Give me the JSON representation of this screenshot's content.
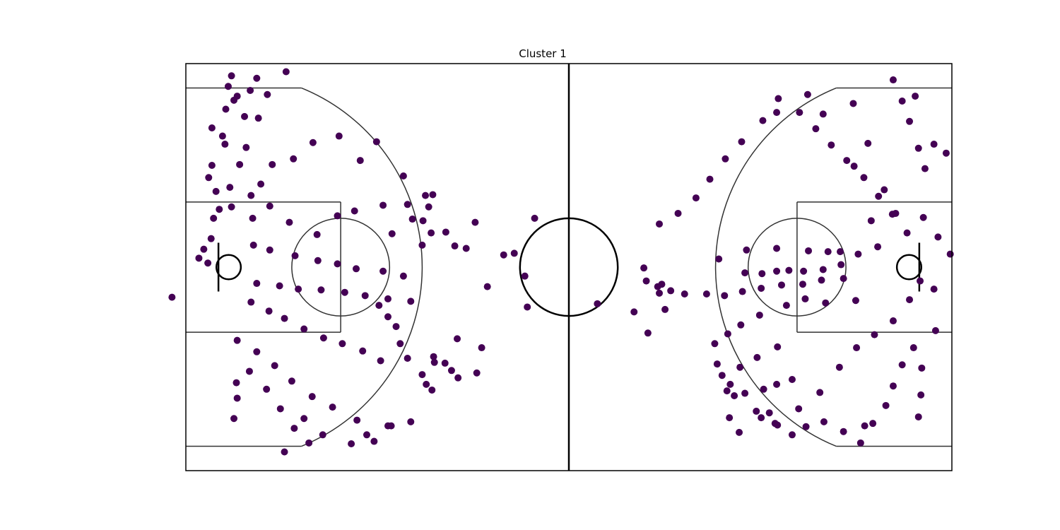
{
  "chart_data": {
    "type": "scatter",
    "title": "Cluster 1",
    "xlabel": "",
    "ylabel": "",
    "xlim": [
      0,
      94
    ],
    "ylim": [
      0,
      50
    ],
    "grid": false,
    "axes_ticks": false,
    "point_color": "#440154",
    "line_color": "#333333",
    "court": {
      "length_ft": 94,
      "width_ft": 50,
      "center_circle_radius_ft": 6,
      "three_point_radius_ft": 23.75,
      "corner_three_ft": 22,
      "lane_width_ft": 16,
      "lane_length_ft": 19,
      "free_throw_circle_radius_ft": 6,
      "rim_x_ft": 5.25
    },
    "shot_points": [
      [
        -1.7,
        21.3
      ],
      [
        41.9,
        20.1
      ],
      [
        50.5,
        20.5
      ],
      [
        37.0,
        22.6
      ],
      [
        39.0,
        26.5
      ],
      [
        42.8,
        31.0
      ],
      [
        40.3,
        26.7
      ],
      [
        41.6,
        23.9
      ],
      [
        5.6,
        32.4
      ],
      [
        8.2,
        31.0
      ],
      [
        10.3,
        32.5
      ],
      [
        12.7,
        30.5
      ],
      [
        16.1,
        29.0
      ],
      [
        18.6,
        31.3
      ],
      [
        20.7,
        31.9
      ],
      [
        24.2,
        32.6
      ],
      [
        7.4,
        39.7
      ],
      [
        8.9,
        43.3
      ],
      [
        10.0,
        46.2
      ],
      [
        12.3,
        49.0
      ],
      [
        7.2,
        43.5
      ],
      [
        4.8,
        40.1
      ],
      [
        3.2,
        42.1
      ],
      [
        5.9,
        45.5
      ],
      [
        6.3,
        16.0
      ],
      [
        8.7,
        14.6
      ],
      [
        10.9,
        12.9
      ],
      [
        13.0,
        11.0
      ],
      [
        15.5,
        9.1
      ],
      [
        18.0,
        7.8
      ],
      [
        21.0,
        6.2
      ],
      [
        24.8,
        5.5
      ],
      [
        25.8,
        17.7
      ],
      [
        24.8,
        18.9
      ],
      [
        23.7,
        20.3
      ],
      [
        26.3,
        15.6
      ],
      [
        27.2,
        13.8
      ],
      [
        30.4,
        14.0
      ],
      [
        33.3,
        16.2
      ],
      [
        36.3,
        15.1
      ],
      [
        35.7,
        12.0
      ],
      [
        33.4,
        11.4
      ],
      [
        32.6,
        12.3
      ],
      [
        31.8,
        13.2
      ],
      [
        30.5,
        13.3
      ],
      [
        29.0,
        11.8
      ],
      [
        29.5,
        10.6
      ],
      [
        30.2,
        9.9
      ],
      [
        6.2,
        10.8
      ],
      [
        6.3,
        8.9
      ],
      [
        5.9,
        6.4
      ],
      [
        7.8,
        12.2
      ],
      [
        9.9,
        10.0
      ],
      [
        11.6,
        7.6
      ],
      [
        14.5,
        6.4
      ],
      [
        16.8,
        4.4
      ],
      [
        20.3,
        3.3
      ],
      [
        22.2,
        4.4
      ],
      [
        23.1,
        3.6
      ],
      [
        25.2,
        5.5
      ],
      [
        27.6,
        6.0
      ],
      [
        15.1,
        3.4
      ],
      [
        13.3,
        5.2
      ],
      [
        12.1,
        2.3
      ],
      [
        5.4,
        34.8
      ],
      [
        6.6,
        37.6
      ],
      [
        8.0,
        33.8
      ],
      [
        9.2,
        35.2
      ],
      [
        10.6,
        37.6
      ],
      [
        13.2,
        38.3
      ],
      [
        15.6,
        40.3
      ],
      [
        18.8,
        41.1
      ],
      [
        21.4,
        38.1
      ],
      [
        23.4,
        40.4
      ],
      [
        26.7,
        36.2
      ],
      [
        29.4,
        33.8
      ],
      [
        31.9,
        29.3
      ],
      [
        33.0,
        27.6
      ],
      [
        34.4,
        27.3
      ],
      [
        35.5,
        30.5
      ],
      [
        80.3,
        26.9
      ],
      [
        78.8,
        26.9
      ],
      [
        76.4,
        27.0
      ],
      [
        72.5,
        27.3
      ],
      [
        68.8,
        27.1
      ],
      [
        65.4,
        26.0
      ],
      [
        61.2,
        21.7
      ],
      [
        58.4,
        22.9
      ],
      [
        56.2,
        24.9
      ],
      [
        55.0,
        19.5
      ],
      [
        56.7,
        16.9
      ],
      [
        58.8,
        19.8
      ],
      [
        58.1,
        21.8
      ],
      [
        56.5,
        23.3
      ],
      [
        57.9,
        22.6
      ],
      [
        59.5,
        22.1
      ],
      [
        90.1,
        23.3
      ],
      [
        88.8,
        21.0
      ],
      [
        86.8,
        18.4
      ],
      [
        84.5,
        16.7
      ],
      [
        82.3,
        15.1
      ],
      [
        80.2,
        12.7
      ],
      [
        77.8,
        9.6
      ],
      [
        75.2,
        7.6
      ],
      [
        72.3,
        5.8
      ],
      [
        70.0,
        7.3
      ],
      [
        67.9,
        4.7
      ],
      [
        66.7,
        6.5
      ],
      [
        66.4,
        9.8
      ],
      [
        68.0,
        12.7
      ],
      [
        70.1,
        13.9
      ],
      [
        72.6,
        15.2
      ],
      [
        88.5,
        29.2
      ],
      [
        86.7,
        31.5
      ],
      [
        85.0,
        33.7
      ],
      [
        83.2,
        36.0
      ],
      [
        81.1,
        38.1
      ],
      [
        79.2,
        40.0
      ],
      [
        77.3,
        42.0
      ],
      [
        75.3,
        44.0
      ],
      [
        72.7,
        45.7
      ],
      [
        70.8,
        43.0
      ],
      [
        68.2,
        40.4
      ],
      [
        66.2,
        38.3
      ],
      [
        64.3,
        35.8
      ],
      [
        62.6,
        33.5
      ],
      [
        60.4,
        31.6
      ],
      [
        58.1,
        30.3
      ],
      [
        90.7,
        37.1
      ],
      [
        89.9,
        39.6
      ],
      [
        88.8,
        42.9
      ],
      [
        87.9,
        45.4
      ],
      [
        86.8,
        48.0
      ],
      [
        89.5,
        46.0
      ],
      [
        91.8,
        40.1
      ],
      [
        93.3,
        39.0
      ],
      [
        81.9,
        45.1
      ],
      [
        78.2,
        43.8
      ],
      [
        76.3,
        46.2
      ],
      [
        72.5,
        44.0
      ],
      [
        83.7,
        40.2
      ],
      [
        82.0,
        37.4
      ],
      [
        85.7,
        34.5
      ],
      [
        87.1,
        31.6
      ],
      [
        63.9,
        21.7
      ],
      [
        66.1,
        21.5
      ],
      [
        68.3,
        22.0
      ],
      [
        70.6,
        22.4
      ],
      [
        73.1,
        22.8
      ],
      [
        75.7,
        22.9
      ],
      [
        78.0,
        23.4
      ],
      [
        80.7,
        23.6
      ],
      [
        64.9,
        15.6
      ],
      [
        66.5,
        16.8
      ],
      [
        68.1,
        17.9
      ],
      [
        70.4,
        19.1
      ],
      [
        73.7,
        20.3
      ],
      [
        76.0,
        21.1
      ],
      [
        78.5,
        20.6
      ],
      [
        82.2,
        20.9
      ],
      [
        65.2,
        13.1
      ],
      [
        65.8,
        11.7
      ],
      [
        66.8,
        10.6
      ],
      [
        67.3,
        9.2
      ],
      [
        68.6,
        9.5
      ],
      [
        70.9,
        10.0
      ],
      [
        72.5,
        10.6
      ],
      [
        74.4,
        11.2
      ],
      [
        70.6,
        6.5
      ],
      [
        71.6,
        7.1
      ],
      [
        72.6,
        5.6
      ],
      [
        74.4,
        4.4
      ],
      [
        76.1,
        5.4
      ],
      [
        78.3,
        6.0
      ],
      [
        80.7,
        4.8
      ],
      [
        83.3,
        5.5
      ],
      [
        89.3,
        15.1
      ],
      [
        87.9,
        13.0
      ],
      [
        86.8,
        10.4
      ],
      [
        85.9,
        8.0
      ],
      [
        84.3,
        5.8
      ],
      [
        82.8,
        3.4
      ],
      [
        90.2,
        9.3
      ],
      [
        89.9,
        6.6
      ],
      [
        90.3,
        12.6
      ],
      [
        92.0,
        17.2
      ],
      [
        91.8,
        22.3
      ],
      [
        93.8,
        26.6
      ],
      [
        92.3,
        28.7
      ],
      [
        90.5,
        31.1
      ],
      [
        84.1,
        30.7
      ],
      [
        84.9,
        27.5
      ],
      [
        82.5,
        26.6
      ],
      [
        80.4,
        25.3
      ],
      [
        78.2,
        24.7
      ],
      [
        75.8,
        24.5
      ],
      [
        74.0,
        24.6
      ],
      [
        72.5,
        24.5
      ],
      [
        70.7,
        24.2
      ],
      [
        68.6,
        24.3
      ],
      [
        8.3,
        27.7
      ],
      [
        10.3,
        27.1
      ],
      [
        13.4,
        26.4
      ],
      [
        16.2,
        25.8
      ],
      [
        18.6,
        25.4
      ],
      [
        20.9,
        24.8
      ],
      [
        24.2,
        24.5
      ],
      [
        26.7,
        23.9
      ],
      [
        8.7,
        23.0
      ],
      [
        11.5,
        22.7
      ],
      [
        13.8,
        22.3
      ],
      [
        16.6,
        22.2
      ],
      [
        19.5,
        21.9
      ],
      [
        22.0,
        21.5
      ],
      [
        24.8,
        21.1
      ],
      [
        27.6,
        20.8
      ],
      [
        8.0,
        20.7
      ],
      [
        10.2,
        19.6
      ],
      [
        12.1,
        18.7
      ],
      [
        14.5,
        17.4
      ],
      [
        16.9,
        16.3
      ],
      [
        19.2,
        15.6
      ],
      [
        21.7,
        14.7
      ],
      [
        23.9,
        13.5
      ],
      [
        29.0,
        27.7
      ],
      [
        30.1,
        29.2
      ],
      [
        29.1,
        30.7
      ],
      [
        29.8,
        32.4
      ],
      [
        30.3,
        33.9
      ],
      [
        25.3,
        29.1
      ],
      [
        27.8,
        30.9
      ],
      [
        27.2,
        32.7
      ],
      [
        4.5,
        41.1
      ],
      [
        4.9,
        44.4
      ],
      [
        5.2,
        47.2
      ],
      [
        5.6,
        48.5
      ],
      [
        6.3,
        46.0
      ],
      [
        7.9,
        46.7
      ],
      [
        8.7,
        48.2
      ],
      [
        3.2,
        37.5
      ],
      [
        2.7,
        25.5
      ],
      [
        1.6,
        26.1
      ],
      [
        2.2,
        27.2
      ],
      [
        3.1,
        28.5
      ],
      [
        3.4,
        31.0
      ],
      [
        4.1,
        32.1
      ],
      [
        3.7,
        34.3
      ],
      [
        2.8,
        36.0
      ]
    ]
  }
}
